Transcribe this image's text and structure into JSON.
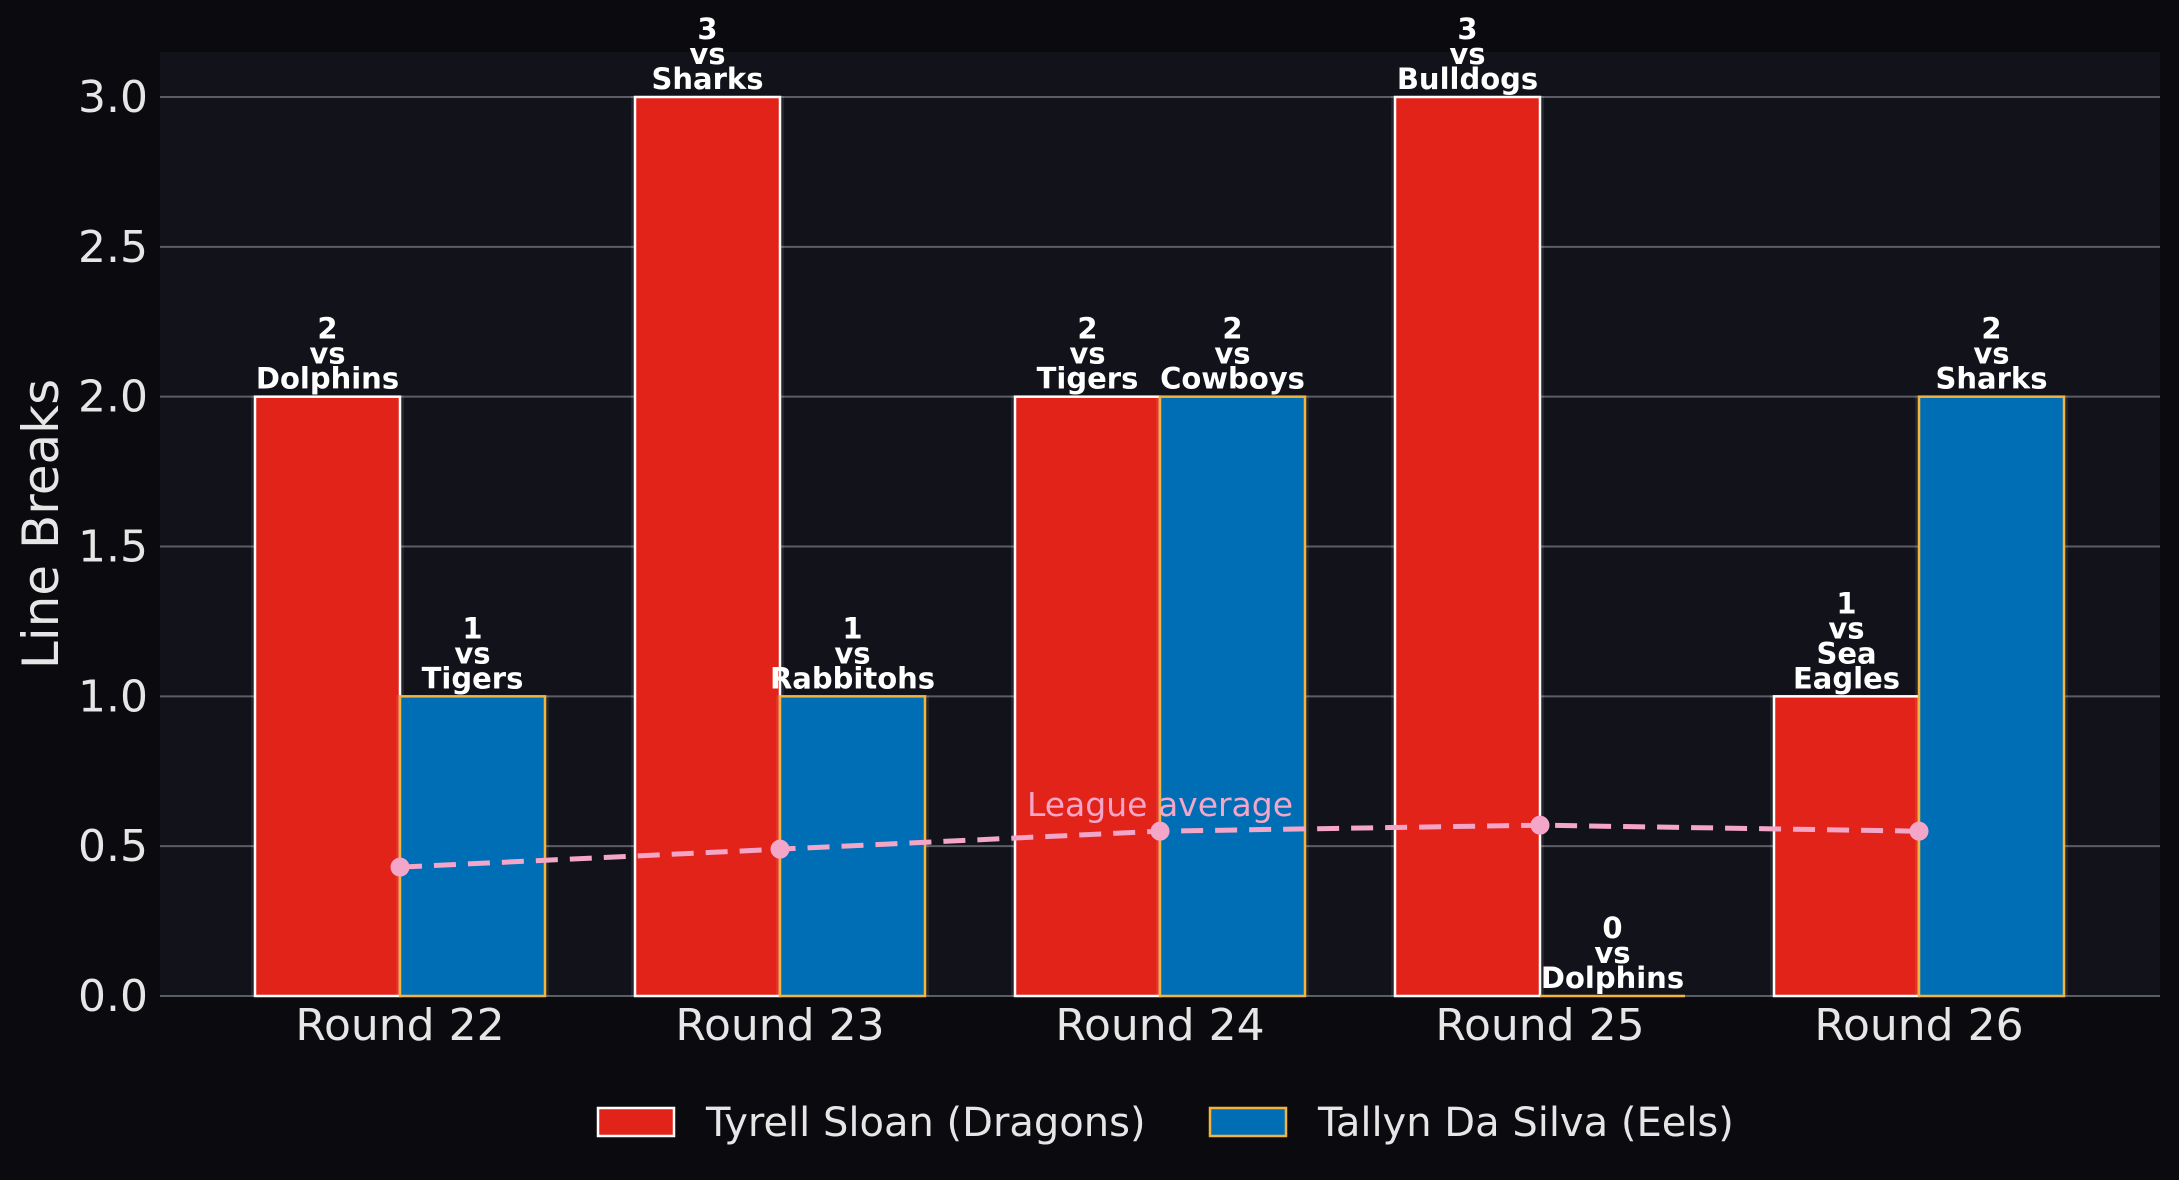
{
  "chart_data": {
    "type": "bar",
    "categories": [
      "Round 22",
      "Round 23",
      "Round 24",
      "Round 25",
      "Round 26"
    ],
    "ylabel": "Line Breaks",
    "xlabel": "",
    "ylim": [
      0,
      3.15
    ],
    "yticks": [
      0.0,
      0.5,
      1.0,
      1.5,
      2.0,
      2.5,
      3.0
    ],
    "ytick_labels": [
      "0.0",
      "0.5",
      "1.0",
      "1.5",
      "2.0",
      "2.5",
      "3.0"
    ],
    "grid": true,
    "legend_position": "bottom",
    "series": [
      {
        "name": "Tyrell Sloan (Dragons)",
        "color": "#e2231a",
        "edge_color": "#ffffff",
        "values": [
          2,
          3,
          2,
          3,
          1
        ],
        "labels": [
          [
            "2",
            "vs",
            "Dolphins"
          ],
          [
            "3",
            "vs",
            "Sharks"
          ],
          [
            "2",
            "vs",
            "Tigers"
          ],
          [
            "3",
            "vs",
            "Bulldogs"
          ],
          [
            "1",
            "vs",
            "Sea",
            "Eagles"
          ]
        ]
      },
      {
        "name": "Tallyn Da Silva (Eels)",
        "color": "#006eb5",
        "edge_color": "#f2b43c",
        "values": [
          1,
          1,
          2,
          0,
          2
        ],
        "labels": [
          [
            "1",
            "vs",
            "Tigers"
          ],
          [
            "1",
            "vs",
            "Rabbitohs"
          ],
          [
            "2",
            "vs",
            "Cowboys"
          ],
          [
            "0",
            "vs",
            "Dolphins"
          ],
          [
            "2",
            "vs",
            "Sharks"
          ]
        ]
      }
    ],
    "league_average": {
      "label": "League average",
      "color": "#f4a6c9",
      "values": [
        0.43,
        0.49,
        0.55,
        0.57,
        0.55
      ]
    }
  }
}
